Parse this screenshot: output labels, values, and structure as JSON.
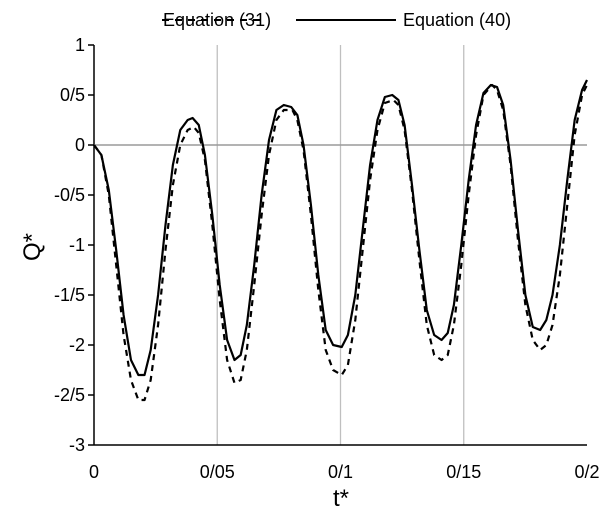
{
  "chart_data": {
    "type": "line",
    "xlabel": "t*",
    "ylabel": "Q*",
    "xlim": [
      0,
      0.2
    ],
    "ylim": [
      -3,
      1
    ],
    "grid": "vertical",
    "legend_position": "top",
    "x_ticks": [
      {
        "value": 0,
        "label": "0"
      },
      {
        "value": 0.05,
        "label": "0/05"
      },
      {
        "value": 0.1,
        "label": "0/1"
      },
      {
        "value": 0.15,
        "label": "0/15"
      },
      {
        "value": 0.2,
        "label": "0/2"
      }
    ],
    "y_ticks": [
      {
        "value": 1,
        "label": "1"
      },
      {
        "value": 0.5,
        "label": "0/5"
      },
      {
        "value": 0,
        "label": "0"
      },
      {
        "value": -0.5,
        "label": "-0/5"
      },
      {
        "value": -1,
        "label": "-1"
      },
      {
        "value": -1.5,
        "label": "-1/5"
      },
      {
        "value": -2,
        "label": "-2"
      },
      {
        "value": -2.5,
        "label": "-2/5"
      },
      {
        "value": -3,
        "label": "-3"
      }
    ],
    "series": [
      {
        "name": "Equation (31)",
        "style": "dashed",
        "color": "#000000",
        "x": [
          0,
          0.003,
          0.006,
          0.009,
          0.012,
          0.015,
          0.018,
          0.0205,
          0.023,
          0.026,
          0.029,
          0.032,
          0.035,
          0.038,
          0.0405,
          0.0425,
          0.045,
          0.048,
          0.051,
          0.054,
          0.057,
          0.0595,
          0.062,
          0.065,
          0.068,
          0.071,
          0.074,
          0.077,
          0.0805,
          0.0825,
          0.085,
          0.088,
          0.091,
          0.094,
          0.097,
          0.1005,
          0.103,
          0.106,
          0.109,
          0.112,
          0.115,
          0.118,
          0.1215,
          0.1235,
          0.126,
          0.129,
          0.132,
          0.135,
          0.138,
          0.141,
          0.1435,
          0.146,
          0.149,
          0.152,
          0.155,
          0.158,
          0.1615,
          0.1635,
          0.166,
          0.169,
          0.172,
          0.175,
          0.178,
          0.181,
          0.1835,
          0.186,
          0.189,
          0.192,
          0.195,
          0.198,
          0.2
        ],
        "y": [
          0,
          -0.1,
          -0.5,
          -1.2,
          -1.9,
          -2.35,
          -2.55,
          -2.55,
          -2.35,
          -1.8,
          -1.05,
          -0.4,
          0.0,
          0.15,
          0.18,
          0.12,
          -0.15,
          -0.8,
          -1.55,
          -2.15,
          -2.38,
          -2.35,
          -2.05,
          -1.4,
          -0.7,
          -0.1,
          0.25,
          0.35,
          0.35,
          0.25,
          -0.05,
          -0.7,
          -1.45,
          -2.05,
          -2.25,
          -2.3,
          -2.2,
          -1.75,
          -1.05,
          -0.35,
          0.15,
          0.42,
          0.45,
          0.4,
          0.15,
          -0.45,
          -1.15,
          -1.8,
          -2.1,
          -2.15,
          -2.1,
          -1.8,
          -1.2,
          -0.5,
          0.1,
          0.5,
          0.6,
          0.55,
          0.35,
          -0.2,
          -0.95,
          -1.6,
          -1.95,
          -2.05,
          -2.0,
          -1.8,
          -1.3,
          -0.6,
          0.1,
          0.5,
          0.6
        ]
      },
      {
        "name": "Equation (40)",
        "style": "solid",
        "color": "#000000",
        "x": [
          0,
          0.003,
          0.006,
          0.009,
          0.012,
          0.015,
          0.018,
          0.0205,
          0.023,
          0.026,
          0.029,
          0.032,
          0.035,
          0.038,
          0.04,
          0.0425,
          0.045,
          0.048,
          0.051,
          0.054,
          0.057,
          0.0595,
          0.062,
          0.065,
          0.068,
          0.071,
          0.074,
          0.077,
          0.08,
          0.0825,
          0.085,
          0.088,
          0.091,
          0.094,
          0.097,
          0.1005,
          0.103,
          0.106,
          0.109,
          0.112,
          0.115,
          0.118,
          0.121,
          0.1235,
          0.126,
          0.129,
          0.132,
          0.135,
          0.138,
          0.141,
          0.1435,
          0.146,
          0.149,
          0.152,
          0.155,
          0.158,
          0.161,
          0.1635,
          0.166,
          0.169,
          0.172,
          0.175,
          0.178,
          0.181,
          0.1835,
          0.186,
          0.189,
          0.192,
          0.195,
          0.198,
          0.2
        ],
        "y": [
          0,
          -0.1,
          -0.45,
          -1.05,
          -1.7,
          -2.15,
          -2.3,
          -2.3,
          -2.05,
          -1.5,
          -0.8,
          -0.2,
          0.15,
          0.25,
          0.27,
          0.2,
          -0.1,
          -0.7,
          -1.4,
          -1.95,
          -2.15,
          -2.1,
          -1.8,
          -1.2,
          -0.5,
          0.05,
          0.35,
          0.4,
          0.38,
          0.3,
          0.0,
          -0.6,
          -1.3,
          -1.85,
          -2.0,
          -2.02,
          -1.9,
          -1.5,
          -0.85,
          -0.2,
          0.25,
          0.48,
          0.5,
          0.45,
          0.2,
          -0.4,
          -1.05,
          -1.65,
          -1.9,
          -1.95,
          -1.88,
          -1.6,
          -1.0,
          -0.35,
          0.2,
          0.52,
          0.6,
          0.58,
          0.4,
          -0.15,
          -0.85,
          -1.5,
          -1.82,
          -1.85,
          -1.75,
          -1.5,
          -1.0,
          -0.35,
          0.25,
          0.55,
          0.65
        ]
      }
    ]
  }
}
